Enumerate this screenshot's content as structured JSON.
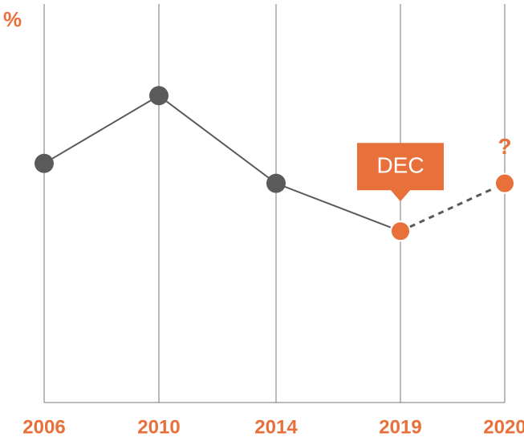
{
  "chart_data": {
    "type": "line",
    "y_label": "%",
    "categories": [
      "2006",
      "2010",
      "2014",
      "2019",
      "2020"
    ],
    "ylim": [
      0,
      100
    ],
    "series": [
      {
        "color": "#5a5a5a",
        "values": [
          60,
          77,
          55,
          43,
          null
        ],
        "dashed": false,
        "marker_colors": [
          "#5a5a5a",
          "#5a5a5a",
          "#5a5a5a",
          "#e8703a",
          null
        ]
      },
      {
        "color": "#5a5a5a",
        "values": [
          null,
          null,
          null,
          43,
          55
        ],
        "dashed": true,
        "marker_colors": [
          null,
          null,
          null,
          "#e8703a",
          "#e8703a"
        ]
      }
    ],
    "label_color": "#e8703a",
    "annotations": [
      {
        "text": "DEC",
        "category": "2019",
        "style": "callout"
      },
      {
        "text": "?",
        "category": "2020",
        "style": "plain"
      }
    ]
  }
}
